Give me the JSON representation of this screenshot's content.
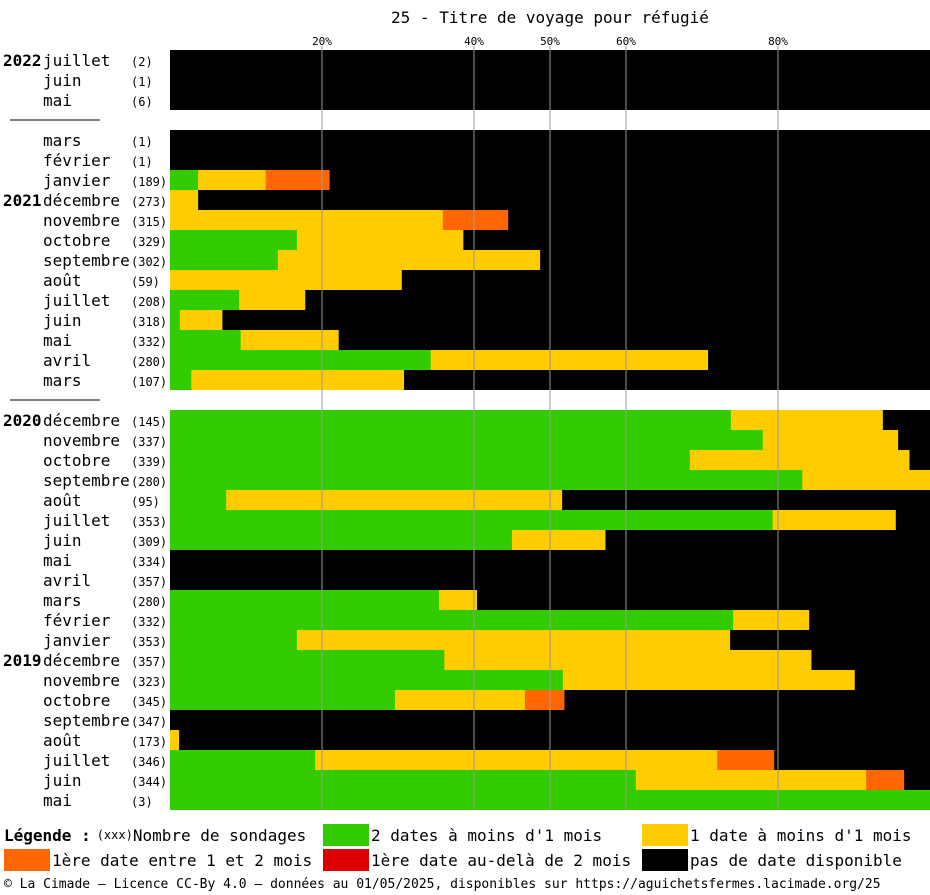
{
  "chart_data": {
    "type": "bar",
    "stacked": true,
    "orientation": "horizontal",
    "title": "25 - Titre de voyage pour réfugié",
    "xlim": [
      0,
      100
    ],
    "xticks": [
      "20%",
      "40%",
      "50%",
      "60%",
      "80%"
    ],
    "xtick_values": [
      20,
      40,
      50,
      60,
      80
    ],
    "grid": true,
    "series": [
      {
        "name": "2 dates à moins d'1 mois",
        "color": "#33cc00"
      },
      {
        "name": "1 date à moins d'1 mois",
        "color": "#ffcc00"
      },
      {
        "name": "1ère date entre 1 et 2 mois",
        "color": "#ff6600"
      },
      {
        "name": "1ère date au-delà de 2 mois",
        "color": "#dd0000"
      },
      {
        "name": "pas de date disponible",
        "color": "#000000"
      }
    ],
    "rows": [
      {
        "year": "2022",
        "month": "juillet",
        "count": "(2)",
        "values": [
          0,
          0,
          0,
          0,
          100
        ]
      },
      {
        "year": "",
        "month": "juin",
        "count": "(1)",
        "values": [
          0,
          0,
          0,
          0,
          100
        ]
      },
      {
        "year": "",
        "month": "mai",
        "count": "(6)",
        "values": [
          0,
          0,
          0,
          0,
          100
        ],
        "gap_after": true
      },
      {
        "year": "",
        "month": "mars",
        "count": "(1)",
        "values": [
          0,
          0,
          0,
          0,
          100
        ]
      },
      {
        "year": "",
        "month": "février",
        "count": "(1)",
        "values": [
          0,
          0,
          0,
          0,
          100
        ]
      },
      {
        "year": "",
        "month": "janvier",
        "count": "(189)",
        "values": [
          3.7,
          8.9,
          8.4,
          0,
          79.0
        ]
      },
      {
        "year": "2021",
        "month": "décembre",
        "count": "(273)",
        "values": [
          0,
          3.7,
          0,
          0,
          96.3
        ]
      },
      {
        "year": "",
        "month": "novembre",
        "count": "(315)",
        "values": [
          0,
          35.9,
          8.6,
          0,
          55.5
        ]
      },
      {
        "year": "",
        "month": "octobre",
        "count": "(329)",
        "values": [
          16.7,
          21.9,
          0,
          0,
          61.4
        ]
      },
      {
        "year": "",
        "month": "septembre",
        "count": "(302)",
        "values": [
          14.2,
          34.5,
          0,
          0,
          51.3
        ]
      },
      {
        "year": "",
        "month": "août",
        "count": "(59)",
        "values": [
          0,
          30.5,
          0,
          0,
          69.5
        ]
      },
      {
        "year": "",
        "month": "juillet",
        "count": "(208)",
        "values": [
          9.1,
          8.7,
          0,
          0,
          82.2
        ]
      },
      {
        "year": "",
        "month": "juin",
        "count": "(318)",
        "values": [
          1.3,
          5.6,
          0,
          0,
          93.1
        ]
      },
      {
        "year": "",
        "month": "mai",
        "count": "(332)",
        "values": [
          9.3,
          12.9,
          0,
          0,
          77.8
        ]
      },
      {
        "year": "",
        "month": "avril",
        "count": "(280)",
        "values": [
          34.3,
          36.5,
          0,
          0,
          29.2
        ]
      },
      {
        "year": "",
        "month": "mars",
        "count": "(107)",
        "values": [
          2.8,
          28.0,
          0,
          0,
          69.2
        ],
        "gap_after": true
      },
      {
        "year": "2020",
        "month": "décembre",
        "count": "(145)",
        "values": [
          73.8,
          20.0,
          0,
          0,
          6.2
        ]
      },
      {
        "year": "",
        "month": "novembre",
        "count": "(337)",
        "values": [
          78.0,
          17.8,
          0,
          0,
          4.2
        ]
      },
      {
        "year": "",
        "month": "octobre",
        "count": "(339)",
        "values": [
          68.4,
          28.9,
          0,
          0,
          2.7
        ]
      },
      {
        "year": "",
        "month": "septembre",
        "count": "(280)",
        "values": [
          83.2,
          16.8,
          0,
          0,
          0
        ]
      },
      {
        "year": "",
        "month": "août",
        "count": "(95)",
        "values": [
          7.4,
          44.2,
          0,
          0,
          48.4
        ]
      },
      {
        "year": "",
        "month": "juillet",
        "count": "(353)",
        "values": [
          79.3,
          16.2,
          0,
          0,
          4.5
        ]
      },
      {
        "year": "",
        "month": "juin",
        "count": "(309)",
        "values": [
          45.0,
          12.3,
          0,
          0,
          42.7
        ]
      },
      {
        "year": "",
        "month": "mai",
        "count": "(334)",
        "values": [
          0,
          0,
          0,
          0,
          100
        ]
      },
      {
        "year": "",
        "month": "avril",
        "count": "(357)",
        "values": [
          0,
          0,
          0,
          0,
          100
        ]
      },
      {
        "year": "",
        "month": "mars",
        "count": "(280)",
        "values": [
          35.4,
          5.0,
          0,
          0,
          59.6
        ]
      },
      {
        "year": "",
        "month": "février",
        "count": "(332)",
        "values": [
          74.1,
          10.0,
          0,
          0,
          15.9
        ]
      },
      {
        "year": "",
        "month": "janvier",
        "count": "(353)",
        "values": [
          16.7,
          57.0,
          0,
          0,
          26.3
        ]
      },
      {
        "year": "2019",
        "month": "décembre",
        "count": "(357)",
        "values": [
          36.1,
          48.3,
          0,
          0,
          15.6
        ]
      },
      {
        "year": "",
        "month": "novembre",
        "count": "(323)",
        "values": [
          51.7,
          38.4,
          0,
          0,
          9.9
        ]
      },
      {
        "year": "",
        "month": "octobre",
        "count": "(345)",
        "values": [
          29.6,
          17.1,
          5.2,
          0,
          48.1
        ]
      },
      {
        "year": "",
        "month": "septembre",
        "count": "(347)",
        "values": [
          0,
          0,
          0,
          0,
          100
        ]
      },
      {
        "year": "",
        "month": "août",
        "count": "(173)",
        "values": [
          0,
          1.2,
          0,
          0,
          98.8
        ]
      },
      {
        "year": "",
        "month": "juillet",
        "count": "(346)",
        "values": [
          19.1,
          52.9,
          7.5,
          0,
          20.5
        ]
      },
      {
        "year": "",
        "month": "juin",
        "count": "(344)",
        "values": [
          61.3,
          30.3,
          5.0,
          0,
          3.4
        ]
      },
      {
        "year": "",
        "month": "mai",
        "count": "(3)",
        "values": [
          100,
          0,
          0,
          0,
          0
        ]
      }
    ]
  },
  "legend": {
    "title": "Légende :",
    "count_label": "(xxx)",
    "count_text": "Nombre de sondages"
  },
  "footer": "© La Cimade — Licence CC-By 4.0 — données au 01/05/2025, disponibles sur https://aguichetsfermes.lacimade.org/25"
}
